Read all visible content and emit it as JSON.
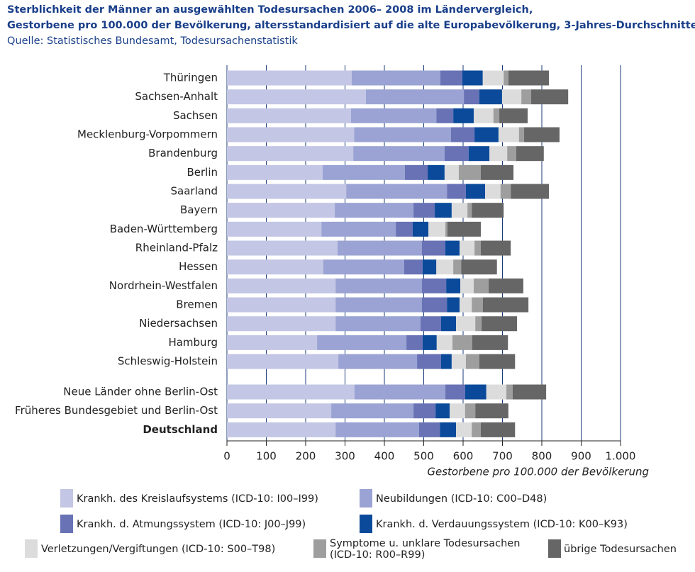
{
  "chart_data": {
    "type": "stacked-bar-horizontal",
    "title": "Sterblichkeit der Männer an ausgewählten Todesursachen 2006– 2008 im Ländervergleich,",
    "subtitle": "Gestorbene pro 100.000 der Bevölkerung, altersstandardisiert auf die alte Europabevölkerung, 3-Jahres-Durchschnitte",
    "source": "Quelle: Statistisches Bundesamt, Todesursachenstatistik",
    "x_label": "Gestorbene pro 100.000 der Bevölkerung",
    "categories": [
      "Thüringen",
      "Sachsen-Anhalt",
      "Sachsen",
      "Mecklenburg-Vorpommern",
      "Brandenburg",
      "Berlin",
      "Saarland",
      "Bayern",
      "Baden-Württemberg",
      "Rheinland-Pfalz",
      "Hessen",
      "Nordrhein-Westfalen",
      "Bremen",
      "Niedersachsen",
      "Hamburg",
      "Schleswig-Holstein",
      "Neue Länder ohne Berlin-Ost",
      "Früheres Bundesgebiet und Berlin-Ost",
      "Deutschland"
    ],
    "series": [
      {
        "name": "Krankh. des Kreislaufsystems (ICD-10: I00–I99)",
        "color": "#c3c6e4",
        "values": [
          317,
          353,
          315,
          323,
          321,
          243,
          303,
          274,
          240,
          281,
          245,
          276,
          276,
          276,
          229,
          283,
          324,
          265,
          276
        ]
      },
      {
        "name": "Neubildungen (ICD-10: C00–D48)",
        "color": "#9aa3d3",
        "values": [
          225,
          249,
          217,
          246,
          232,
          209,
          256,
          200,
          189,
          214,
          205,
          219,
          219,
          216,
          227,
          200,
          231,
          209,
          212
        ]
      },
      {
        "name": "Krankh. d. Atmungssystem (ICD-10: J00–J99)",
        "color": "#6872b5",
        "values": [
          56,
          39,
          43,
          60,
          61,
          58,
          48,
          54,
          43,
          60,
          47,
          62,
          64,
          52,
          41,
          61,
          50,
          56,
          53
        ]
      },
      {
        "name": "Krankh. d. Verdauungssystem (ICD-10: K00–K93)",
        "color": "#0b4a9a",
        "values": [
          52,
          58,
          52,
          61,
          53,
          43,
          49,
          43,
          40,
          36,
          35,
          36,
          32,
          38,
          36,
          27,
          54,
          36,
          41
        ]
      },
      {
        "name": "Verletzungen/Vergiftungen (ICD-10: S00–T98)",
        "color": "#dcdcdc",
        "values": [
          53,
          49,
          50,
          52,
          45,
          36,
          39,
          40,
          43,
          38,
          43,
          34,
          31,
          49,
          40,
          36,
          51,
          39,
          40
        ]
      },
      {
        "name": "Symptome u. unklare Todesursachen (ICD-10: R00–R99)",
        "color": "#9e9e9e",
        "values": [
          12,
          25,
          15,
          13,
          23,
          56,
          26,
          11,
          5,
          16,
          20,
          38,
          28,
          16,
          50,
          34,
          16,
          26,
          23
        ]
      },
      {
        "name": "übrige Todesursachen",
        "color": "#666666",
        "values": [
          103,
          94,
          72,
          90,
          70,
          83,
          97,
          81,
          85,
          76,
          91,
          88,
          116,
          90,
          91,
          91,
          85,
          84,
          87
        ]
      }
    ],
    "xlim": [
      0,
      1000
    ],
    "xticks": [
      0,
      100,
      200,
      300,
      400,
      500,
      600,
      700,
      800,
      900,
      {
        "value": 1000,
        "label": "1.000"
      }
    ],
    "grid": true
  }
}
